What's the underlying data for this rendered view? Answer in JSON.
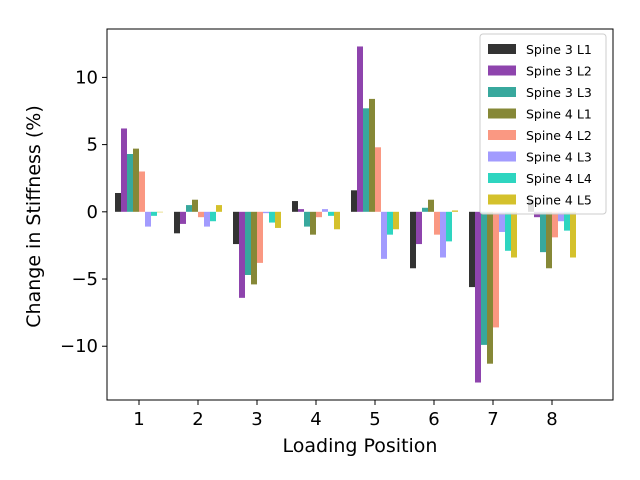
{
  "chart_data": {
    "type": "bar",
    "title": "",
    "xlabel": "Loading Position",
    "ylabel": "Change in Stiffness (%)",
    "categories": [
      "1",
      "2",
      "3",
      "4",
      "5",
      "6",
      "7",
      "8"
    ],
    "ylim": [
      -14,
      13.6
    ],
    "yticks": [
      10,
      5,
      0,
      -5,
      -10
    ],
    "ytick_labels": [
      "10",
      "5",
      "0",
      "−5",
      "−10"
    ],
    "grid": false,
    "legend_position": "top-right",
    "series": [
      {
        "name": "Spine 3 L1",
        "color": "#333333",
        "values": [
          1.4,
          -1.6,
          -2.4,
          0.8,
          1.6,
          -4.2,
          -5.6,
          0.9
        ]
      },
      {
        "name": "Spine 3 L2",
        "color": "#8e44ad",
        "values": [
          6.2,
          -0.9,
          -6.4,
          0.2,
          12.3,
          -2.4,
          -12.7,
          -0.4
        ]
      },
      {
        "name": "Spine 3 L3",
        "color": "#38a89d",
        "values": [
          4.3,
          0.5,
          -4.7,
          -1.1,
          7.7,
          0.3,
          -9.9,
          -3.0
        ]
      },
      {
        "name": "Spine 4 L1",
        "color": "#868837",
        "values": [
          4.7,
          0.9,
          -5.4,
          -1.7,
          8.4,
          0.9,
          -11.3,
          -4.2
        ]
      },
      {
        "name": "Spine 4 L2",
        "color": "#fa9882",
        "values": [
          3.0,
          -0.4,
          -3.8,
          -0.4,
          4.8,
          -1.7,
          -8.6,
          -1.9
        ]
      },
      {
        "name": "Spine 4 L3",
        "color": "#a29bfe",
        "values": [
          -1.1,
          -1.1,
          -0.1,
          0.2,
          -3.5,
          -3.4,
          -1.5,
          -0.7
        ]
      },
      {
        "name": "Spine 4 L4",
        "color": "#2ed5c0",
        "values": [
          -0.3,
          -0.7,
          -0.8,
          -0.3,
          -1.7,
          -2.2,
          -2.9,
          -1.4
        ]
      },
      {
        "name": "Spine 4 L5",
        "color": "#d4c12c",
        "values": [
          0.0,
          0.5,
          -1.2,
          -1.3,
          -1.3,
          0.1,
          -3.4,
          -3.4
        ]
      }
    ]
  }
}
